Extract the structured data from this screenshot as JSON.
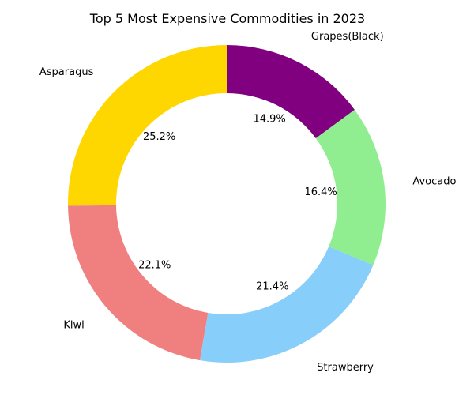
{
  "chart_data": {
    "type": "pie",
    "donut": true,
    "title": "Top 5 Most Expensive Commodities in 2023",
    "start_angle_deg": 90,
    "direction": "counterclockwise",
    "slices": [
      {
        "label": "Asparagus",
        "value": 25.2,
        "pct_label": "25.2%",
        "color": "#FFD700"
      },
      {
        "label": "Kiwi",
        "value": 22.1,
        "pct_label": "22.1%",
        "color": "#F08080"
      },
      {
        "label": "Strawberry",
        "value": 21.4,
        "pct_label": "21.4%",
        "color": "#87CEFA"
      },
      {
        "label": "Avocado",
        "value": 16.4,
        "pct_label": "16.4%",
        "color": "#90EE90"
      },
      {
        "label": "Grapes(Black)",
        "value": 14.9,
        "pct_label": "14.9%",
        "color": "#800080"
      }
    ]
  }
}
